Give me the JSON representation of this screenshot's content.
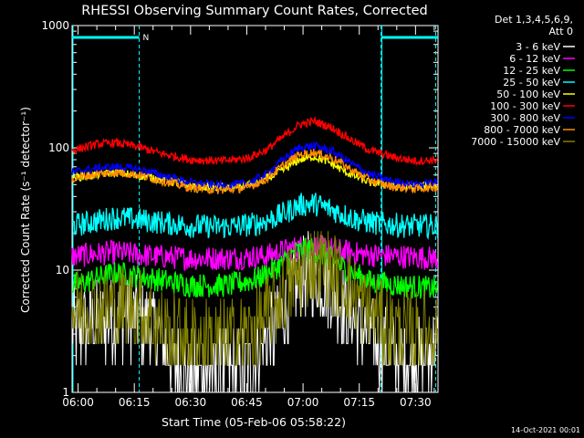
{
  "chart_data": {
    "type": "line",
    "title": "RHESSI Observing Summary Count Rates, Corrected",
    "xlabel": "Start Time (05-Feb-06 05:58:22)",
    "ylabel": "Corrected Count Rate (s⁻¹ detector⁻¹)",
    "y_scale": "log",
    "ylim": [
      1,
      1000
    ],
    "x_unit": "minutes after 06:00",
    "xlim": [
      -1.6,
      96
    ],
    "x_ticks": [
      "06:00",
      "06:15",
      "06:30",
      "06:45",
      "07:00",
      "07:15",
      "07:30"
    ],
    "y_ticks": [
      "1",
      "10",
      "100",
      "1000"
    ],
    "detector_info": [
      "Det 1,3,4,5,6,9,",
      "Att 0"
    ],
    "timestamp": "14-Oct-2021 00:01",
    "annotation": "N",
    "series": [
      {
        "name": "3 - 6 keV",
        "color": "#ffffff",
        "t": [
          -1.6,
          10,
          16,
          22,
          25,
          30,
          37,
          45,
          50,
          55,
          58,
          61,
          64,
          68,
          72,
          76,
          80,
          86,
          92,
          96
        ],
        "values": [
          3.2,
          4.2,
          4.2,
          2.8,
          1.7,
          1.4,
          1.4,
          1.6,
          2.5,
          4.5,
          7.5,
          9.5,
          9.0,
          7.0,
          4.5,
          3.2,
          2.5,
          1.8,
          1.8,
          2.4
        ]
      },
      {
        "name": "6 - 12 keV",
        "color": "#ff00ff",
        "t": [
          -1.6,
          10,
          20,
          30,
          40,
          50,
          57,
          62,
          67,
          75,
          85,
          96
        ],
        "values": [
          13,
          14,
          13,
          12.5,
          12.5,
          13,
          15,
          16,
          15,
          13.5,
          13,
          12.5
        ]
      },
      {
        "name": "12 - 25 keV",
        "color": "#00ff00",
        "t": [
          -1.6,
          10,
          20,
          30,
          40,
          48,
          54,
          58,
          62,
          66,
          72,
          78,
          86,
          96
        ],
        "values": [
          7.5,
          9.5,
          8.5,
          7.5,
          7.5,
          8.5,
          11,
          14,
          15,
          13,
          10,
          8,
          7.5,
          7
        ]
      },
      {
        "name": "25 - 50 keV",
        "color": "#00ffff",
        "t": [
          -1.6,
          10,
          20,
          30,
          40,
          48,
          54,
          59,
          63,
          68,
          74,
          80,
          88,
          96
        ],
        "values": [
          23,
          27,
          25,
          23,
          22.5,
          24,
          28,
          34,
          35,
          31,
          26,
          24,
          23,
          23
        ]
      },
      {
        "name": "50 - 100 keV",
        "color": "#ffff00",
        "t": [
          -1.6,
          10,
          20,
          30,
          40,
          48,
          54,
          59,
          63,
          67,
          72,
          78,
          86,
          96
        ],
        "values": [
          57,
          63,
          57,
          49,
          47,
          52,
          64,
          80,
          85,
          76,
          62,
          52,
          48,
          49
        ]
      },
      {
        "name": "100 - 300 keV",
        "color": "#ff0000",
        "t": [
          -1.6,
          5,
          10,
          16,
          22,
          30,
          38,
          45,
          50,
          55,
          59,
          63,
          68,
          73,
          78,
          84,
          90,
          96
        ],
        "values": [
          95,
          107,
          110,
          102,
          90,
          80,
          78,
          82,
          95,
          125,
          155,
          165,
          145,
          115,
          95,
          84,
          78,
          80
        ]
      },
      {
        "name": "300 - 800 keV",
        "color": "#0000ff",
        "t": [
          -1.6,
          5,
          10,
          16,
          22,
          30,
          38,
          45,
          50,
          55,
          59,
          63,
          68,
          73,
          78,
          84,
          90,
          96
        ],
        "values": [
          63,
          68,
          70,
          67,
          60,
          52,
          49,
          51,
          60,
          82,
          100,
          104,
          93,
          74,
          60,
          53,
          50,
          52
        ]
      },
      {
        "name": "800 - 7000 keV",
        "color": "#ff8c00",
        "t": [
          -1.6,
          5,
          10,
          16,
          22,
          30,
          38,
          45,
          50,
          55,
          59,
          63,
          68,
          73,
          78,
          84,
          90,
          96
        ],
        "values": [
          56,
          61,
          63,
          60,
          54,
          47,
          45,
          47,
          55,
          73,
          88,
          92,
          82,
          66,
          54,
          48,
          46,
          48
        ]
      },
      {
        "name": "7000 - 15000 keV",
        "color": "#808000",
        "t": [
          -1.6,
          10,
          16,
          20,
          24,
          30,
          38,
          45,
          50,
          54,
          58,
          62,
          66,
          70,
          74,
          78,
          82,
          88,
          96
        ],
        "values": [
          4.8,
          5.2,
          5.0,
          4.0,
          3.0,
          2.7,
          2.7,
          3.0,
          4.0,
          6.0,
          8.5,
          11,
          10.5,
          8.5,
          6.0,
          4.5,
          3.6,
          3.0,
          3.2
        ]
      }
    ],
    "night_segments": [
      [
        -1.6,
        16.3
      ],
      [
        80.8,
        96
      ]
    ],
    "saa_markers": [
      16.3,
      80.8
    ]
  }
}
